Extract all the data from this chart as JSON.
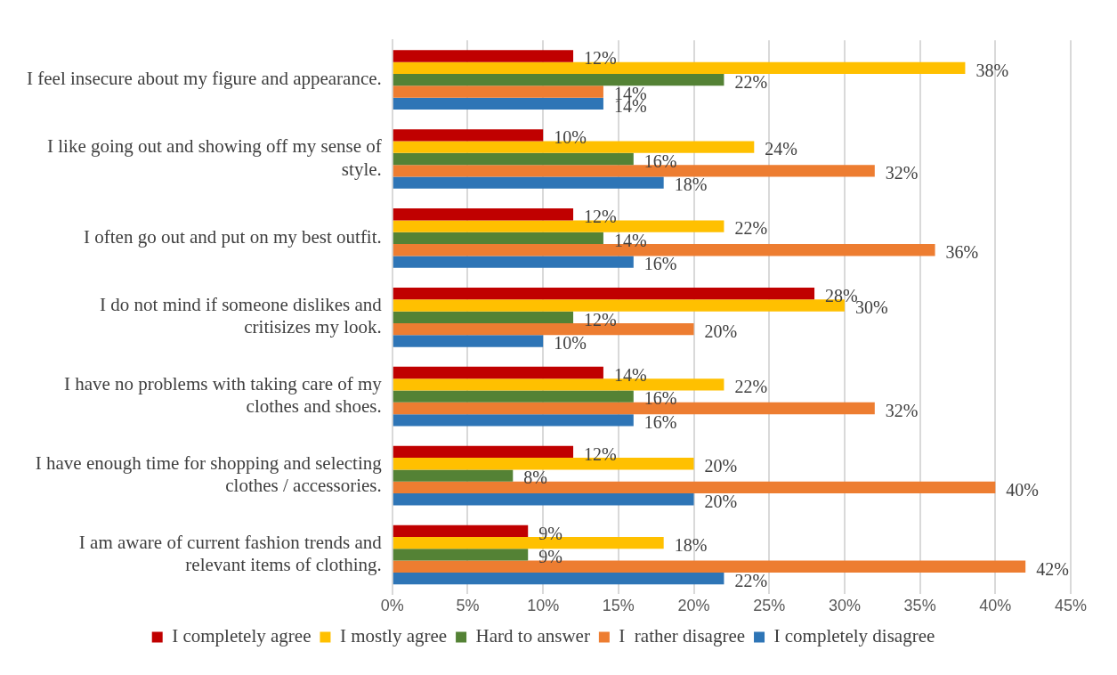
{
  "chart_data": {
    "type": "bar",
    "orientation": "horizontal",
    "categories": [
      "I feel insecure about my figure and appearance.",
      "I like going out and showing off my sense of style.",
      "I often go out and put on my best outfit.",
      "I do not mind if someone dislikes and critisizes my look.",
      "I have no problems with taking care of my clothes and shoes.",
      "I have enough time for shopping and selecting clothes / accessories.",
      "I am aware of current fashion trends and relevant items of clothing."
    ],
    "series": [
      {
        "name": "I completely agree",
        "color": "#c00000",
        "values": [
          12,
          10,
          12,
          28,
          14,
          12,
          9
        ],
        "value_labels": [
          "12%",
          "10%",
          "12%",
          "28%",
          "14%",
          "12%",
          "9%"
        ]
      },
      {
        "name": "I mostly agree",
        "color": "#ffc000",
        "values": [
          38,
          24,
          22,
          30,
          22,
          20,
          18
        ],
        "value_labels": [
          "38%",
          "24%",
          "22%",
          "30%",
          "22%",
          "20%",
          "18%"
        ]
      },
      {
        "name": "Hard to answer",
        "color": "#548235",
        "values": [
          22,
          16,
          14,
          12,
          16,
          8,
          9
        ],
        "value_labels": [
          "22%",
          "16%",
          "14%",
          "12%",
          "16%",
          "8%",
          "9%"
        ]
      },
      {
        "name": "I  rather disagree",
        "color": "#ed7d31",
        "values": [
          14,
          32,
          36,
          20,
          32,
          40,
          42
        ],
        "value_labels": [
          "14%",
          "32%",
          "36%",
          "20%",
          "32%",
          "40%",
          "42%"
        ]
      },
      {
        "name": "I completely disagree",
        "color": "#2e75b6",
        "values": [
          14,
          18,
          16,
          10,
          16,
          20,
          22
        ],
        "value_labels": [
          "14%",
          "18%",
          "16%",
          "10%",
          "16%",
          "20%",
          "22%"
        ]
      }
    ],
    "xlim": [
      0,
      45
    ],
    "xticks": [
      {
        "value": 0,
        "label": "0%"
      },
      {
        "value": 5,
        "label": "5%"
      },
      {
        "value": 10,
        "label": "10%"
      },
      {
        "value": 15,
        "label": "15%"
      },
      {
        "value": 20,
        "label": "20%"
      },
      {
        "value": 25,
        "label": "25%"
      },
      {
        "value": 30,
        "label": "30%"
      },
      {
        "value": 35,
        "label": "35%"
      },
      {
        "value": 40,
        "label": "40%"
      },
      {
        "value": 45,
        "label": "45%"
      }
    ],
    "grid": "x",
    "legend": "bottom"
  }
}
